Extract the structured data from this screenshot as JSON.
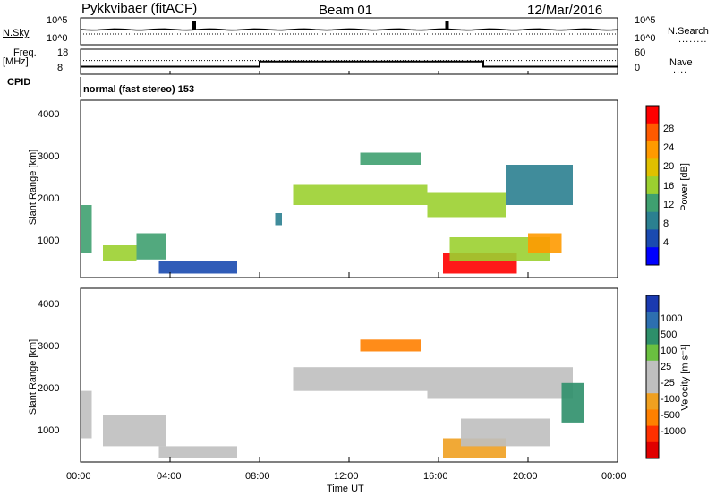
{
  "header": {
    "station": "Pykkvibaer (fitACF)",
    "beam": "Beam 01",
    "date": "12/Mar/2016"
  },
  "top_panel": {
    "left_label": "N.Sky",
    "right_label": "N.Search",
    "left_ticks": [
      "10^5",
      "10^0"
    ],
    "right_ticks": [
      "10^5",
      "10^0"
    ]
  },
  "freq_panel": {
    "left_label_line1": "Freq.",
    "left_label_line2": "[MHz]",
    "left_ticks": [
      "18",
      "8"
    ],
    "right_ticks": [
      "60",
      "0"
    ],
    "right_label": "Nave"
  },
  "cpid_panel": {
    "label": "CPID",
    "text": "normal (fast stereo) 153"
  },
  "power_panel": {
    "ylabel": "Slant Range [km]",
    "yticks": [
      "4000",
      "3000",
      "2000",
      "1000"
    ],
    "colorbar_label": "Power [dB]",
    "colorbar_ticks": [
      "28",
      "24",
      "20",
      "16",
      "12",
      "8",
      "4"
    ],
    "colorbar_colors": [
      "#ff0000",
      "#ff5a00",
      "#ff9a00",
      "#e0c000",
      "#9bd030",
      "#3fa070",
      "#2b8090",
      "#1a4ab0",
      "#0000ff"
    ]
  },
  "velocity_panel": {
    "ylabel": "Slant Range [km]",
    "yticks": [
      "4000",
      "3000",
      "2000",
      "1000"
    ],
    "colorbar_label": "Velocity [m s⁻¹]",
    "colorbar_ticks": [
      "1000",
      "500",
      "100",
      "25",
      "-25",
      "-100",
      "-500",
      "-1000"
    ],
    "colorbar_colors": [
      "#1a3ab0",
      "#2d6fb0",
      "#2e8f6a",
      "#6ac040",
      "#bfbfbf",
      "#bfbfbf",
      "#f0a020",
      "#ff8000",
      "#ff3000",
      "#e00000"
    ]
  },
  "x_axis": {
    "ticks": [
      "00:00",
      "04:00",
      "08:00",
      "12:00",
      "16:00",
      "20:00",
      "00:00"
    ],
    "label": "Time UT"
  },
  "chart_data": [
    {
      "type": "heatmap",
      "title": "Pykkvibaer (fitACF) Beam 01 12/Mar/2016",
      "xlabel": "Time UT",
      "ylabel": "Slant Range [km]",
      "xlim": [
        0,
        24
      ],
      "ylim": [
        200,
        4600
      ],
      "colorbar": {
        "label": "Power [dB]",
        "range": [
          0,
          30
        ]
      },
      "regions": [
        {
          "t0": 0.0,
          "t1": 0.5,
          "r0": 800,
          "r1": 2000,
          "value": 12
        },
        {
          "t0": 1.0,
          "t1": 2.5,
          "r0": 600,
          "r1": 1000,
          "value": 16
        },
        {
          "t0": 2.5,
          "t1": 3.8,
          "r0": 650,
          "r1": 1300,
          "value": 10
        },
        {
          "t0": 3.5,
          "t1": 7.0,
          "r0": 300,
          "r1": 600,
          "value": 4
        },
        {
          "t0": 8.7,
          "t1": 9.0,
          "r0": 1500,
          "r1": 1800,
          "value": 8
        },
        {
          "t0": 9.5,
          "t1": 15.5,
          "r0": 2000,
          "r1": 2500,
          "value": 16
        },
        {
          "t0": 12.5,
          "t1": 15.2,
          "r0": 3000,
          "r1": 3300,
          "value": 10
        },
        {
          "t0": 15.5,
          "t1": 19.0,
          "r0": 1700,
          "r1": 2300,
          "value": 14
        },
        {
          "t0": 16.2,
          "t1": 19.5,
          "r0": 300,
          "r1": 800,
          "value": 28
        },
        {
          "t0": 16.5,
          "t1": 21.0,
          "r0": 600,
          "r1": 1200,
          "value": 14
        },
        {
          "t0": 20.0,
          "t1": 21.5,
          "r0": 800,
          "r1": 1300,
          "value": 20
        },
        {
          "t0": 19.0,
          "t1": 22.0,
          "r0": 2000,
          "r1": 3000,
          "value": 8
        }
      ]
    },
    {
      "type": "heatmap",
      "title": "",
      "xlabel": "Time UT",
      "ylabel": "Slant Range [km]",
      "xlim": [
        0,
        24
      ],
      "ylim": [
        200,
        4600
      ],
      "colorbar": {
        "label": "Velocity [m s⁻¹]",
        "range": [
          -1000,
          1000
        ]
      },
      "regions": [
        {
          "t0": 0.0,
          "t1": 0.5,
          "r0": 800,
          "r1": 2000,
          "value": 50
        },
        {
          "t0": 1.0,
          "t1": 3.8,
          "r0": 600,
          "r1": 1400,
          "value": 0
        },
        {
          "t0": 3.5,
          "t1": 7.0,
          "r0": 300,
          "r1": 600,
          "value": -100
        },
        {
          "t0": 9.5,
          "t1": 15.5,
          "r0": 2000,
          "r1": 2600,
          "value": 0
        },
        {
          "t0": 12.5,
          "t1": 15.2,
          "r0": 3000,
          "r1": 3300,
          "value": -500
        },
        {
          "t0": 15.5,
          "t1": 22.0,
          "r0": 1800,
          "r1": 2600,
          "value": 0
        },
        {
          "t0": 16.2,
          "t1": 19.0,
          "r0": 300,
          "r1": 800,
          "value": -300
        },
        {
          "t0": 17.0,
          "t1": 21.0,
          "r0": 600,
          "r1": 1300,
          "value": 100
        },
        {
          "t0": 21.5,
          "t1": 22.5,
          "r0": 1200,
          "r1": 2200,
          "value": 500
        }
      ]
    }
  ]
}
